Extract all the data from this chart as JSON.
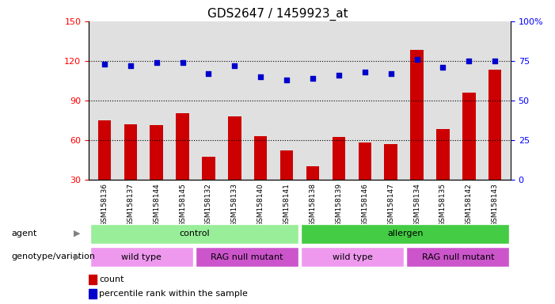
{
  "title": "GDS2647 / 1459923_at",
  "samples": [
    "GSM158136",
    "GSM158137",
    "GSM158144",
    "GSM158145",
    "GSM158132",
    "GSM158133",
    "GSM158140",
    "GSM158141",
    "GSM158138",
    "GSM158139",
    "GSM158146",
    "GSM158147",
    "GSM158134",
    "GSM158135",
    "GSM158142",
    "GSM158143"
  ],
  "counts": [
    75,
    72,
    71,
    80,
    47,
    78,
    63,
    52,
    40,
    62,
    58,
    57,
    128,
    68,
    96,
    113
  ],
  "percentiles": [
    73,
    72,
    74,
    74,
    67,
    72,
    65,
    63,
    64,
    66,
    68,
    67,
    76,
    71,
    75,
    75
  ],
  "ylim_left": [
    30,
    150
  ],
  "ylim_right": [
    0,
    100
  ],
  "yticks_left": [
    30,
    60,
    90,
    120,
    150
  ],
  "yticks_right": [
    0,
    25,
    50,
    75,
    100
  ],
  "hlines": [
    60,
    90,
    120
  ],
  "bar_color": "#cc0000",
  "dot_color": "#0000cc",
  "agent_groups": [
    {
      "label": "control",
      "start": 0,
      "end": 8,
      "color": "#99ee99"
    },
    {
      "label": "allergen",
      "start": 8,
      "end": 16,
      "color": "#44cc44"
    }
  ],
  "genotype_groups": [
    {
      "label": "wild type",
      "start": 0,
      "end": 4,
      "color": "#ee99ee"
    },
    {
      "label": "RAG null mutant",
      "start": 4,
      "end": 8,
      "color": "#cc55cc"
    },
    {
      "label": "wild type",
      "start": 8,
      "end": 12,
      "color": "#ee99ee"
    },
    {
      "label": "RAG null mutant",
      "start": 12,
      "end": 16,
      "color": "#cc55cc"
    }
  ],
  "legend_count_color": "#cc0000",
  "legend_pct_color": "#0000cc",
  "xlabel_agent": "agent",
  "xlabel_genotype": "genotype/variation",
  "background_color": "#ffffff",
  "plot_bg_color": "#e0e0e0"
}
